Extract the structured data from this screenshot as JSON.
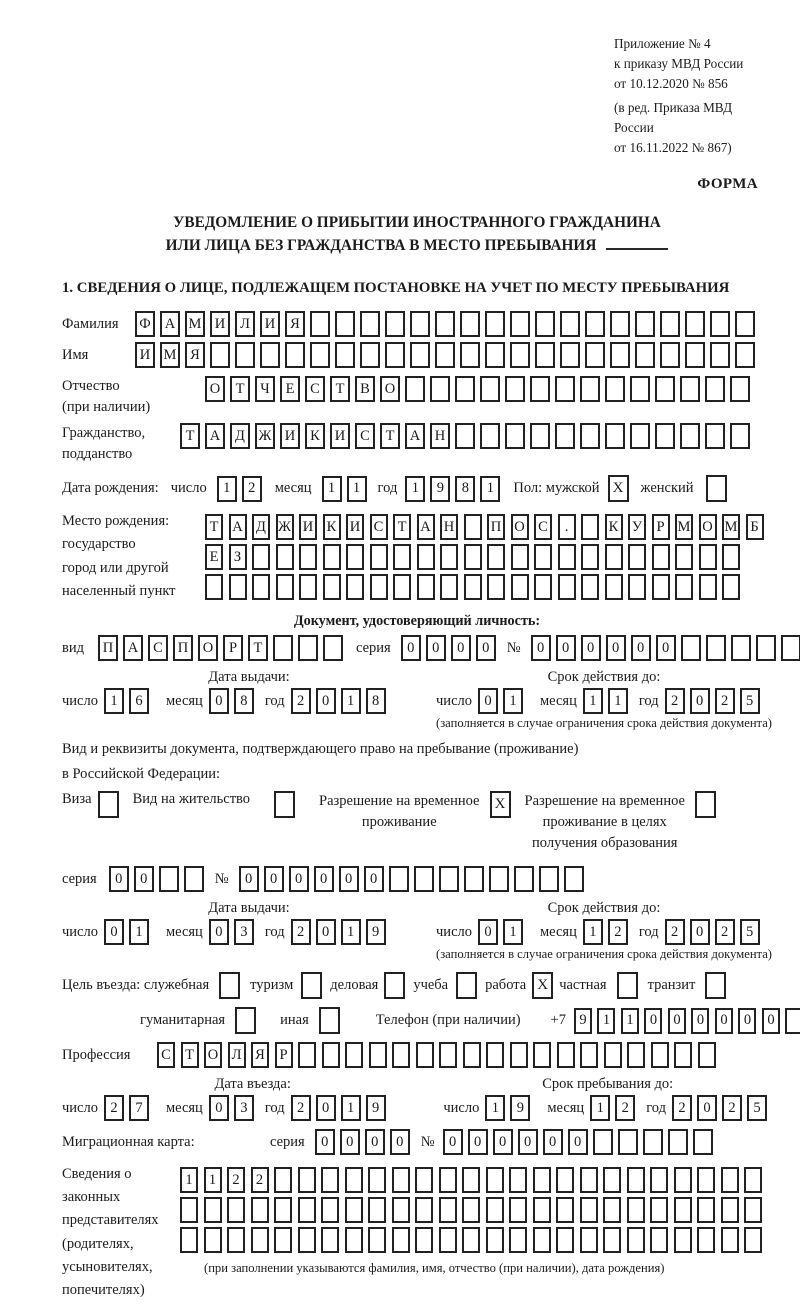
{
  "checkbox_mark": "X",
  "header": {
    "appendix": "Приложение № 4",
    "order1": "к приказу МВД России",
    "order2": "от 10.12.2020 № 856",
    "edit1": "(в ред. Приказа МВД России",
    "edit2": "от 16.11.2022 № 867)",
    "forma": "ФОРМА"
  },
  "title": {
    "line1": "УВЕДОМЛЕНИЕ О ПРИБЫТИИ ИНОСТРАННОГО ГРАЖДАНИНА",
    "line2": "ИЛИ ЛИЦА БЕЗ ГРАЖДАНСТВА В МЕСТО ПРЕБЫВАНИЯ"
  },
  "section1": {
    "heading": "1. СВЕДЕНИЯ О ЛИЦЕ, ПОДЛЕЖАЩЕМ ПОСТАНОВКЕ НА УЧЕТ ПО МЕСТУ ПРЕБЫВАНИЯ"
  },
  "labels": {
    "surname": "Фамилия",
    "name": "Имя",
    "patronymic_l1": "Отчество",
    "patronymic_l2": "(при наличии)",
    "citizenship_l1": "Гражданство,",
    "citizenship_l2": "подданство",
    "birth_date": "Дата рождения:",
    "day": "число",
    "month": "месяц",
    "year": "год",
    "gender": "Пол: мужской",
    "female": "женский",
    "birthplace_l1": "Место рождения:",
    "birthplace_l2": "государство",
    "birthplace_l3": "город или другой",
    "birthplace_l4": "населенный пункт",
    "identity_doc": "Документ, удостоверяющий личность:",
    "doc_kind": "вид",
    "series": "серия",
    "number": "№",
    "issue_date": "Дата выдачи:",
    "valid_until": "Срок действия до:",
    "valid_note": "(заполняется в случае ограничения срока действия документа)",
    "resident_doc_l1": "Вид и реквизиты документа, подтверждающего право на пребывание (проживание)",
    "resident_doc_l2": "в Российской Федерации:",
    "visa": "Виза",
    "residence_permit": "Вид на жительство",
    "temp_residence_l1": "Разрешение на временное",
    "temp_residence_l2": "проживание",
    "temp_edu_l1": "Разрешение на временное",
    "temp_edu_l2": "проживание в целях",
    "temp_edu_l3": "получения образования",
    "purpose": "Цель въезда: служебная",
    "tourism": "туризм",
    "business": "деловая",
    "study": "учеба",
    "work": "работа",
    "private": "частная",
    "transit": "транзит",
    "humanitarian": "гуманитарная",
    "other": "иная",
    "phone": "Телефон (при наличии)",
    "phone_prefix": "+7",
    "profession": "Профессия",
    "entry_date": "Дата въезда:",
    "stay_until": "Срок пребывания до:",
    "migration_card": "Миграционная карта:",
    "reps_l1": "Сведения о",
    "reps_l2": "законных",
    "reps_l3": "представителях",
    "reps_l4": "(родителях,",
    "reps_l5": "усыновителях,",
    "reps_l6": "попечителях)",
    "reps_note": "(при заполнении указываются фамилия, имя, отчество (при наличии), дата рождения)"
  },
  "fields": {
    "surname": "ФАМИЛИЯ__________________",
    "name": "ИМЯ______________________",
    "patronymic": "ОТЧЕСТВО______________",
    "citizenship": "ТАДЖИКИСТАН____________",
    "birth_day": "12",
    "birth_month": "11",
    "birth_year": "1981",
    "birthplace1": "ТАДЖИКИСТАН_ПОС._КУРМОМБ",
    "birthplace2": "ЕЗ_____________________",
    "birthplace3": "_______________________",
    "doc_kind": "ПАСПОРТ___",
    "doc_series": "0000",
    "doc_number": "000000_____",
    "doc_issue_day": "16",
    "doc_issue_month": "08",
    "doc_issue_year": "2018",
    "doc_valid_day": "01",
    "doc_valid_month": "11",
    "doc_valid_year": "2025",
    "res_series": "00__",
    "res_number": "000000________",
    "res_issue_day": "01",
    "res_issue_month": "03",
    "res_issue_year": "2019",
    "res_valid_day": "01",
    "res_valid_month": "12",
    "res_valid_year": "2025",
    "phone_digits": "911000000_",
    "profession": "СТОЛЯР__________________",
    "entry_day": "27",
    "entry_month": "03",
    "entry_year": "2019",
    "stay_day": "19",
    "stay_month": "12",
    "stay_year": "2025",
    "mig_series": "0000",
    "mig_number": "000000_____",
    "reps1": "1122_____________________",
    "reps2": "_________________________",
    "reps3": "_________________________"
  },
  "checks": {
    "male": true,
    "female": false,
    "visa": false,
    "residence_permit": false,
    "temp_residence": true,
    "temp_residence_edu": false,
    "official": false,
    "tourism": false,
    "business": false,
    "study": false,
    "work": true,
    "private": false,
    "transit": false,
    "humanitarian": false,
    "other": false
  }
}
